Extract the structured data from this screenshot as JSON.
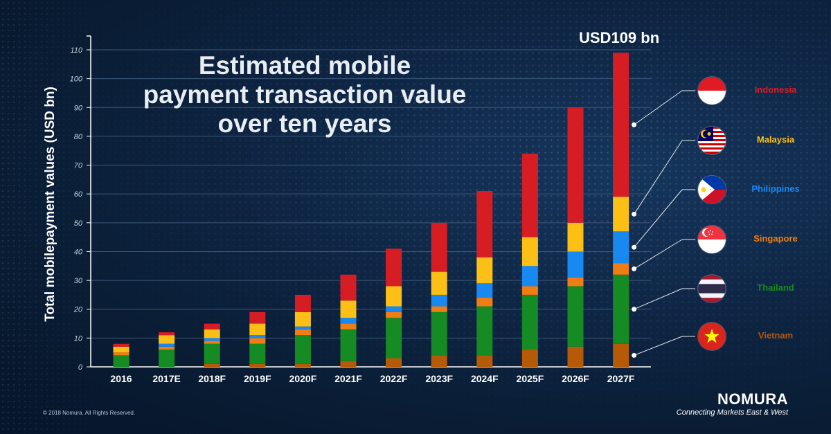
{
  "page": {
    "title": "Estimated mobile\npayment transaction value\nover ten years",
    "total_label": "USD109 bn",
    "copyright": "© 2018 Nomura. All Rights Reserved.",
    "logo": "NOMURA",
    "tagline": "Connecting Markets East & West"
  },
  "colors": {
    "Indonesia": "#d71d24",
    "Malaysia": "#fbbf16",
    "Philippines": "#1789f0",
    "Singapore": "#ef7d14",
    "Thailand": "#168a23",
    "Vietnam": "#b55a07",
    "gridline": "#3c5878",
    "axis": "#ffffff"
  },
  "legend": [
    {
      "name": "Indonesia",
      "flag": "indonesia-flag-icon"
    },
    {
      "name": "Malaysia",
      "flag": "malaysia-flag-icon"
    },
    {
      "name": "Philippines",
      "flag": "philippines-flag-icon"
    },
    {
      "name": "Singapore",
      "flag": "singapore-flag-icon"
    },
    {
      "name": "Thailand",
      "flag": "thailand-flag-icon"
    },
    {
      "name": "Vietnam",
      "flag": "vietnam-flag-icon"
    }
  ],
  "chart_data": {
    "type": "bar",
    "stacked": true,
    "categories": [
      "2016",
      "2017E",
      "2018F",
      "2019F",
      "2020F",
      "2021F",
      "2022F",
      "2023F",
      "2024F",
      "2025F",
      "2026F",
      "2027F"
    ],
    "ylabel": "Total mobilepayment values (USD bn)",
    "xlabel": "",
    "ylim": [
      0,
      110
    ],
    "yticks": [
      0,
      10,
      20,
      30,
      40,
      50,
      60,
      70,
      80,
      90,
      100,
      110
    ],
    "grid": true,
    "legend_position": "right",
    "series": [
      {
        "name": "Vietnam",
        "values": [
          0,
          0,
          1,
          1,
          1,
          2,
          3,
          4,
          4,
          6,
          7,
          8
        ]
      },
      {
        "name": "Thailand",
        "values": [
          4,
          6,
          7,
          7,
          10,
          11,
          14,
          15,
          17,
          19,
          21,
          24
        ]
      },
      {
        "name": "Singapore",
        "values": [
          1,
          1,
          1,
          2,
          2,
          2,
          2,
          2,
          3,
          3,
          3,
          4
        ]
      },
      {
        "name": "Philippines",
        "values": [
          0,
          1,
          1,
          1,
          1,
          2,
          2,
          4,
          5,
          7,
          9,
          11
        ]
      },
      {
        "name": "Malaysia",
        "values": [
          2,
          3,
          3,
          4,
          5,
          6,
          7,
          8,
          9,
          10,
          10,
          12
        ]
      },
      {
        "name": "Indonesia",
        "values": [
          1,
          1,
          2,
          4,
          6,
          9,
          13,
          17,
          23,
          29,
          40,
          50
        ]
      }
    ]
  }
}
